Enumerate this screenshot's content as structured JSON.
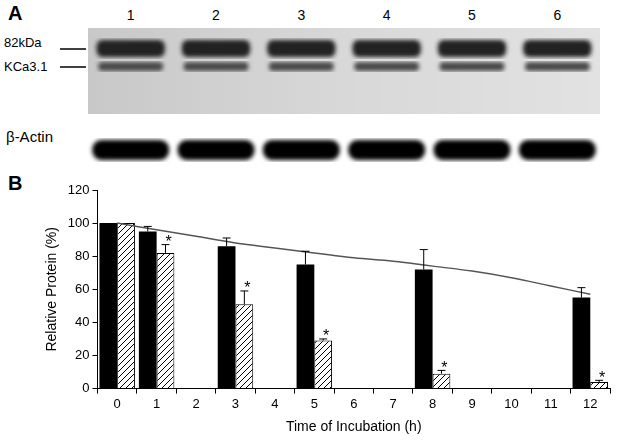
{
  "chart_data": {
    "type": "bar",
    "panel_label": "B",
    "x_label": "Time of Incubation (h)",
    "y_label": "Relative Protein (%)",
    "categories": [
      "0",
      "1",
      "2",
      "3",
      "4",
      "5",
      "6",
      "7",
      "8",
      "9",
      "10",
      "11",
      "12"
    ],
    "series": [
      {
        "type": "bar",
        "color": "#000000",
        "line_style": "solid",
        "values": [
          100,
          95,
          null,
          86,
          null,
          75,
          null,
          null,
          72,
          null,
          null,
          null,
          55
        ],
        "errors": [
          0,
          3,
          null,
          5,
          null,
          8,
          null,
          null,
          12,
          null,
          null,
          null,
          6
        ]
      },
      {
        "type": "bar",
        "color": "#000000",
        "line_style": "hatched",
        "values": [
          100,
          82,
          null,
          51,
          null,
          29,
          null,
          null,
          9,
          null,
          null,
          null,
          4
        ],
        "errors": [
          0,
          5,
          null,
          8,
          null,
          1,
          null,
          null,
          2,
          null,
          null,
          null,
          1
        ],
        "annotations": [
          {
            "category": "1",
            "text": "*"
          },
          {
            "category": "3",
            "text": "*"
          },
          {
            "category": "5",
            "text": "*"
          },
          {
            "category": "8",
            "text": "*"
          },
          {
            "category": "12",
            "text": "*"
          }
        ]
      },
      {
        "type": "line",
        "color": "#555555",
        "line_style": "solid",
        "marker": "none",
        "values": [
          100,
          96,
          92,
          88,
          85,
          82,
          79,
          77,
          74,
          71,
          67,
          62,
          57
        ]
      }
    ],
    "ylim": [
      0,
      120
    ],
    "yticks": [
      0,
      20,
      40,
      60,
      80,
      100,
      120
    ],
    "grid": false
  },
  "blot": {
    "panel_label": "A",
    "lanes": [
      "1",
      "2",
      "3",
      "4",
      "5",
      "6"
    ],
    "band_labels": [
      "82kDa",
      "KCa3.1"
    ],
    "loading_control": "β-Actin"
  }
}
